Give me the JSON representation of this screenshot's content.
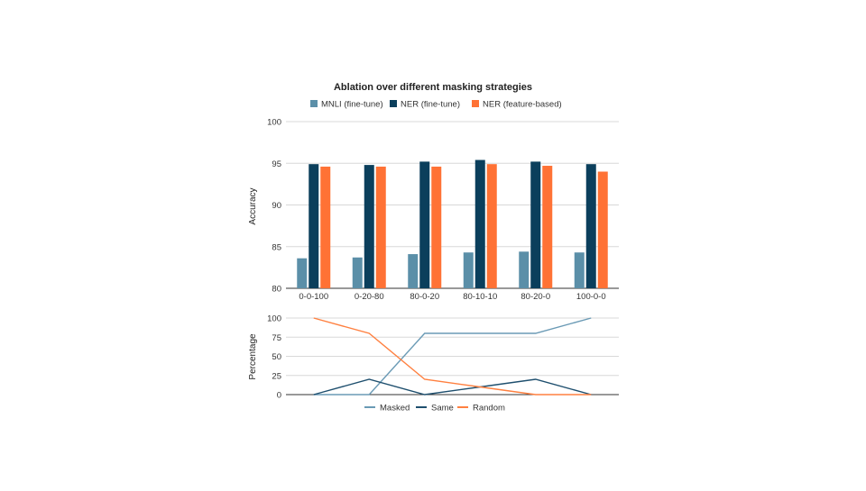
{
  "chart_data": [
    {
      "type": "bar",
      "title": "Ablation over different masking strategies",
      "xlabel": "",
      "ylabel": "Accuracy",
      "ylim": [
        80,
        100
      ],
      "yticks": [
        80,
        85,
        90,
        95,
        100
      ],
      "grid": true,
      "legend": "top",
      "categories": [
        "0-0-100",
        "0-20-80",
        "80-0-20",
        "80-10-10",
        "80-20-0",
        "100-0-0"
      ],
      "series": [
        {
          "name": "MNLI (fine-tune)",
          "color": "#5b8fa8",
          "values": [
            83.6,
            83.7,
            84.1,
            84.3,
            84.4,
            84.3
          ]
        },
        {
          "name": "NER (fine-tune)",
          "color": "#0b3f5c",
          "values": [
            94.9,
            94.8,
            95.2,
            95.4,
            95.2,
            94.9
          ]
        },
        {
          "name": "NER (feature-based)",
          "color": "#ff7235",
          "values": [
            94.6,
            94.6,
            94.6,
            94.9,
            94.7,
            94.0
          ]
        }
      ]
    },
    {
      "type": "line",
      "xlabel": "",
      "ylabel": "Percentage",
      "ylim": [
        0,
        100
      ],
      "yticks": [
        0,
        25,
        50,
        75,
        100
      ],
      "grid": true,
      "legend": "bottom",
      "categories": [
        "0-0-100",
        "0-20-80",
        "80-0-20",
        "80-10-10",
        "80-20-0",
        "100-0-0"
      ],
      "series": [
        {
          "name": "Masked",
          "color": "#6a9ab5",
          "values": [
            0,
            0,
            80,
            80,
            80,
            100
          ]
        },
        {
          "name": "Same",
          "color": "#1e4f6e",
          "values": [
            0,
            20,
            0,
            10,
            20,
            0
          ]
        },
        {
          "name": "Random",
          "color": "#ff8040",
          "values": [
            100,
            80,
            20,
            10,
            0,
            0
          ]
        }
      ]
    }
  ]
}
